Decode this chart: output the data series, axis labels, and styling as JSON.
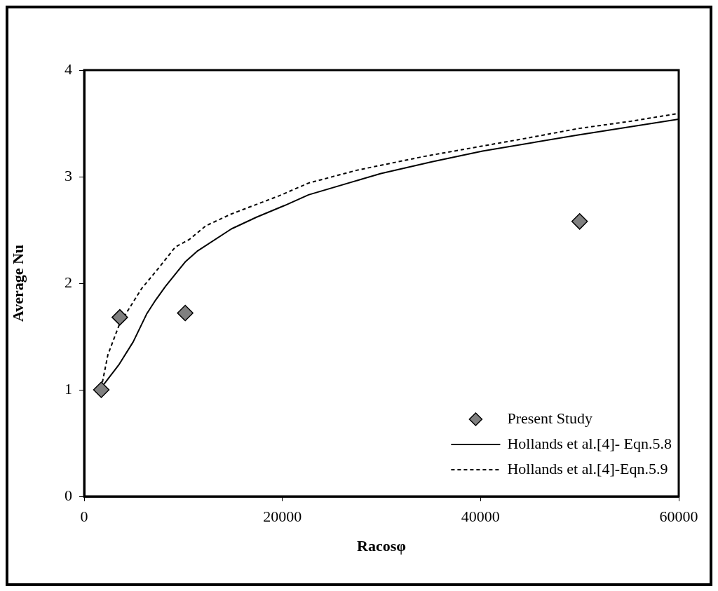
{
  "chart_data": {
    "type": "line",
    "xlabel": "Racosφ",
    "ylabel": "Average Nu",
    "xlim": [
      0,
      60000
    ],
    "ylim": [
      0,
      4
    ],
    "xticks": [
      0,
      20000,
      40000,
      60000
    ],
    "yticks": [
      0,
      1,
      2,
      3,
      4
    ],
    "legend": "bottom right",
    "series": [
      {
        "name": "Present Study",
        "type": "scatter",
        "marker": "diamond",
        "color": "#808080",
        "x": [
          1730,
          3600,
          10200,
          50000
        ],
        "values": [
          1.0,
          1.68,
          1.72,
          2.58
        ]
      },
      {
        "name": "Hollands et al.[4]- Eqn.5.8",
        "marker": "none",
        "line_style": "solid",
        "color": "#000000",
        "x": [
          1980,
          3540,
          4950,
          6300,
          7200,
          8200,
          10200,
          11400,
          14860,
          17400,
          20240,
          22650,
          29950,
          35100,
          40200,
          49750,
          60000
        ],
        "values": [
          1.05,
          1.24,
          1.45,
          1.71,
          1.84,
          1.97,
          2.2,
          2.3,
          2.51,
          2.62,
          2.73,
          2.83,
          3.03,
          3.14,
          3.24,
          3.39,
          3.54
        ]
      },
      {
        "name": "Hollands et al.[4]-Eqn.5.9",
        "marker": "none",
        "line_style": "dashed",
        "color": "#000000",
        "x": [
          1840,
          2400,
          3540,
          4390,
          5800,
          7500,
          9200,
          10600,
          12300,
          14860,
          19660,
          22650,
          27500,
          34300,
          40950,
          44600,
          49750,
          55150,
          59750
        ],
        "values": [
          1.07,
          1.33,
          1.61,
          1.74,
          1.95,
          2.14,
          2.34,
          2.41,
          2.54,
          2.65,
          2.82,
          2.94,
          3.06,
          3.19,
          3.3,
          3.36,
          3.45,
          3.52,
          3.59
        ]
      }
    ]
  }
}
